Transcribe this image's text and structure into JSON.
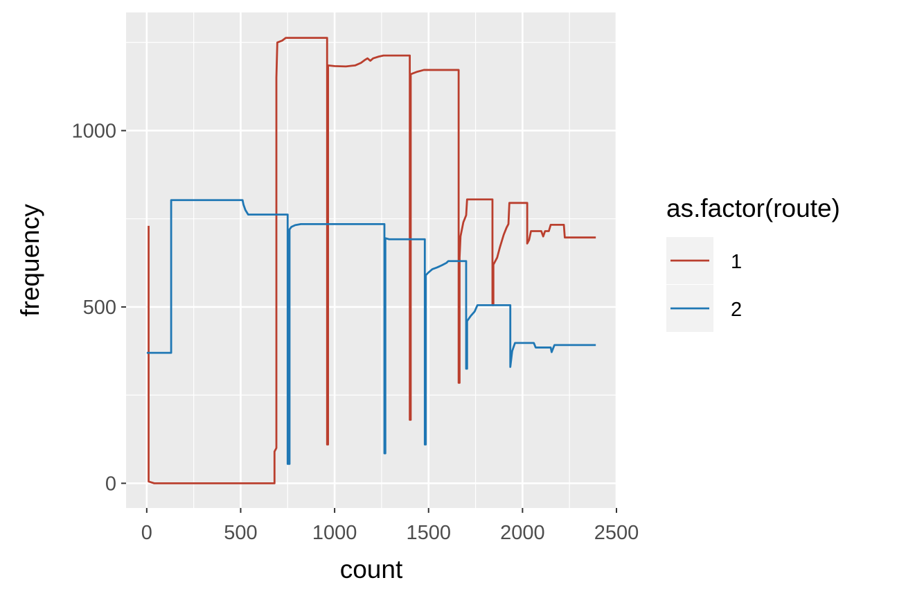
{
  "chart_data": {
    "type": "line",
    "title": "",
    "xlabel": "count",
    "ylabel": "frequency",
    "xlim": [
      -110,
      2500
    ],
    "ylim": [
      -70,
      1335
    ],
    "x_ticks": [
      0,
      500,
      1000,
      1500,
      2000,
      2500
    ],
    "x_tick_labels": [
      "0",
      "500",
      "1000",
      "1500",
      "2000",
      "2500"
    ],
    "y_ticks": [
      0,
      500,
      1000
    ],
    "y_tick_labels": [
      "0",
      "500",
      "1000"
    ],
    "grid": true,
    "legend": {
      "title": "as.factor(route)",
      "position": "right"
    },
    "series": [
      {
        "name": "1",
        "color": "#BA3F2E",
        "points": [
          [
            10,
            730
          ],
          [
            10,
            5
          ],
          [
            40,
            0
          ],
          [
            300,
            0
          ],
          [
            680,
            0
          ],
          [
            680,
            90
          ],
          [
            690,
            100
          ],
          [
            690,
            1150
          ],
          [
            695,
            1250
          ],
          [
            720,
            1255
          ],
          [
            740,
            1263
          ],
          [
            960,
            1263
          ],
          [
            960,
            110
          ],
          [
            965,
            110
          ],
          [
            965,
            1185
          ],
          [
            1000,
            1183
          ],
          [
            1060,
            1182
          ],
          [
            1110,
            1185
          ],
          [
            1140,
            1192
          ],
          [
            1160,
            1200
          ],
          [
            1175,
            1205
          ],
          [
            1190,
            1198
          ],
          [
            1205,
            1205
          ],
          [
            1235,
            1210
          ],
          [
            1260,
            1213
          ],
          [
            1400,
            1213
          ],
          [
            1400,
            180
          ],
          [
            1405,
            180
          ],
          [
            1405,
            1160
          ],
          [
            1440,
            1167
          ],
          [
            1475,
            1172
          ],
          [
            1660,
            1172
          ],
          [
            1660,
            285
          ],
          [
            1665,
            285
          ],
          [
            1665,
            640
          ],
          [
            1670,
            700
          ],
          [
            1685,
            740
          ],
          [
            1700,
            760
          ],
          [
            1705,
            805
          ],
          [
            1720,
            805
          ],
          [
            1840,
            805
          ],
          [
            1840,
            505
          ],
          [
            1845,
            505
          ],
          [
            1845,
            620
          ],
          [
            1865,
            640
          ],
          [
            1880,
            670
          ],
          [
            1900,
            705
          ],
          [
            1915,
            725
          ],
          [
            1925,
            735
          ],
          [
            1930,
            795
          ],
          [
            2025,
            795
          ],
          [
            2025,
            680
          ],
          [
            2035,
            690
          ],
          [
            2045,
            715
          ],
          [
            2100,
            715
          ],
          [
            2110,
            700
          ],
          [
            2120,
            715
          ],
          [
            2140,
            715
          ],
          [
            2150,
            733
          ],
          [
            2220,
            733
          ],
          [
            2225,
            697
          ],
          [
            2390,
            697
          ]
        ]
      },
      {
        "name": "2",
        "color": "#1F77B4",
        "points": [
          [
            0,
            370
          ],
          [
            130,
            370
          ],
          [
            130,
            803
          ],
          [
            510,
            803
          ],
          [
            515,
            790
          ],
          [
            525,
            775
          ],
          [
            540,
            762
          ],
          [
            750,
            762
          ],
          [
            750,
            55
          ],
          [
            760,
            55
          ],
          [
            760,
            720
          ],
          [
            770,
            727
          ],
          [
            790,
            732
          ],
          [
            820,
            735
          ],
          [
            1265,
            735
          ],
          [
            1265,
            85
          ],
          [
            1270,
            85
          ],
          [
            1270,
            695
          ],
          [
            1290,
            692
          ],
          [
            1480,
            692
          ],
          [
            1480,
            110
          ],
          [
            1485,
            110
          ],
          [
            1485,
            590
          ],
          [
            1500,
            598
          ],
          [
            1520,
            607
          ],
          [
            1545,
            612
          ],
          [
            1570,
            618
          ],
          [
            1595,
            625
          ],
          [
            1605,
            630
          ],
          [
            1700,
            630
          ],
          [
            1700,
            325
          ],
          [
            1705,
            325
          ],
          [
            1705,
            460
          ],
          [
            1725,
            475
          ],
          [
            1745,
            487
          ],
          [
            1760,
            505
          ],
          [
            1775,
            505
          ],
          [
            1935,
            505
          ],
          [
            1935,
            330
          ],
          [
            1945,
            375
          ],
          [
            1960,
            398
          ],
          [
            2060,
            398
          ],
          [
            2070,
            385
          ],
          [
            2150,
            385
          ],
          [
            2155,
            372
          ],
          [
            2170,
            392
          ],
          [
            2390,
            392
          ]
        ]
      }
    ]
  }
}
